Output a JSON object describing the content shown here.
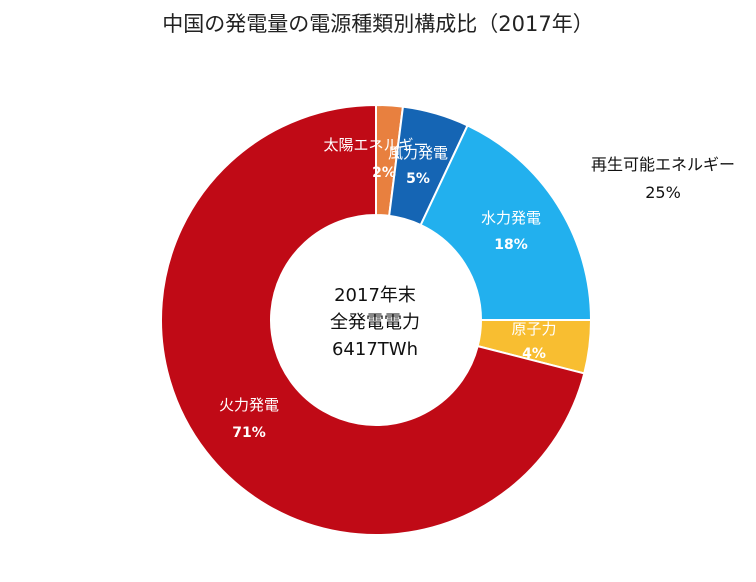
{
  "chart_data": {
    "type": "pie",
    "title": "中国の発電量の電源種類別構成比（2017年）",
    "center_text": [
      "2017年末",
      "全発電電力",
      "6417TWh"
    ],
    "slices": [
      {
        "name": "太陽エネルギー",
        "label": "太陽エネルギー",
        "pct_label": "2%",
        "value": 2,
        "color": "#E8803F"
      },
      {
        "name": "風力発電",
        "label": "風力発電",
        "pct_label": "5%",
        "value": 5,
        "color": "#1565B4"
      },
      {
        "name": "水力発電",
        "label": "水力発電",
        "pct_label": "18%",
        "value": 18,
        "color": "#22B0EE"
      },
      {
        "name": "原子力",
        "label": "原子力",
        "pct_label": "4%",
        "value": 4,
        "color": "#F8BE31"
      },
      {
        "name": "火力発電",
        "label": "火力発電",
        "pct_label": "71%",
        "value": 71,
        "color": "#C00A16"
      }
    ],
    "group_annotation": {
      "label": "再生可能エネルギー",
      "pct_label": "25%"
    }
  }
}
